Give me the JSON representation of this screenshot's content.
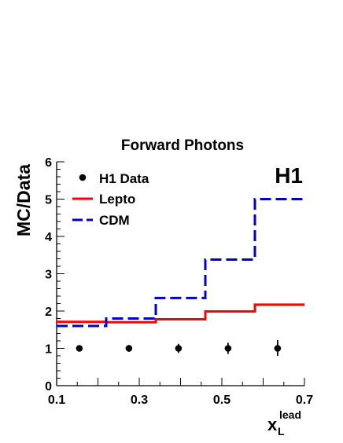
{
  "chart_data": {
    "type": "line",
    "title": "Forward Photons",
    "xlabel": {
      "base": "x",
      "sup": "lead",
      "sub": "L"
    },
    "ylabel": "MC/Data",
    "corner_label": "H1",
    "xlim": [
      0.1,
      0.7
    ],
    "ylim": [
      0,
      6
    ],
    "x_ticks": [
      {
        "value": 0.1,
        "label": "0.1"
      },
      {
        "value": 0.3,
        "label": "0.3"
      },
      {
        "value": 0.5,
        "label": "0.5"
      },
      {
        "value": 0.7,
        "label": "0.7"
      }
    ],
    "y_ticks": [
      {
        "value": 0,
        "label": "0"
      },
      {
        "value": 1,
        "label": "1"
      },
      {
        "value": 2,
        "label": "2"
      },
      {
        "value": 3,
        "label": "3"
      },
      {
        "value": 4,
        "label": "4"
      },
      {
        "value": 5,
        "label": "5"
      },
      {
        "value": 6,
        "label": "6"
      }
    ],
    "bin_edges": [
      0.1,
      0.22,
      0.34,
      0.46,
      0.58,
      0.7
    ],
    "legend": [
      {
        "label": "H1 Data",
        "style": "marker"
      },
      {
        "label": "Lepto",
        "style": "solid"
      },
      {
        "label": "CDM",
        "style": "dashed"
      }
    ],
    "data_points": {
      "name": "H1 Data",
      "x": [
        0.155,
        0.275,
        0.395,
        0.515,
        0.635
      ],
      "y": [
        1.0,
        1.0,
        1.0,
        1.0,
        1.0
      ],
      "err_low": [
        0.07,
        0.09,
        0.12,
        0.15,
        0.2
      ],
      "err_high": [
        0.07,
        0.09,
        0.12,
        0.15,
        0.22
      ],
      "color": "#000000"
    },
    "series": [
      {
        "name": "Lepto",
        "values": [
          1.71,
          1.7,
          1.78,
          1.99,
          2.17
        ],
        "color": "#ff0000",
        "style": "solid"
      },
      {
        "name": "CDM",
        "values": [
          1.6,
          1.8,
          2.35,
          3.38,
          5.0
        ],
        "color": "#0000cc",
        "style": "dashed"
      }
    ]
  }
}
